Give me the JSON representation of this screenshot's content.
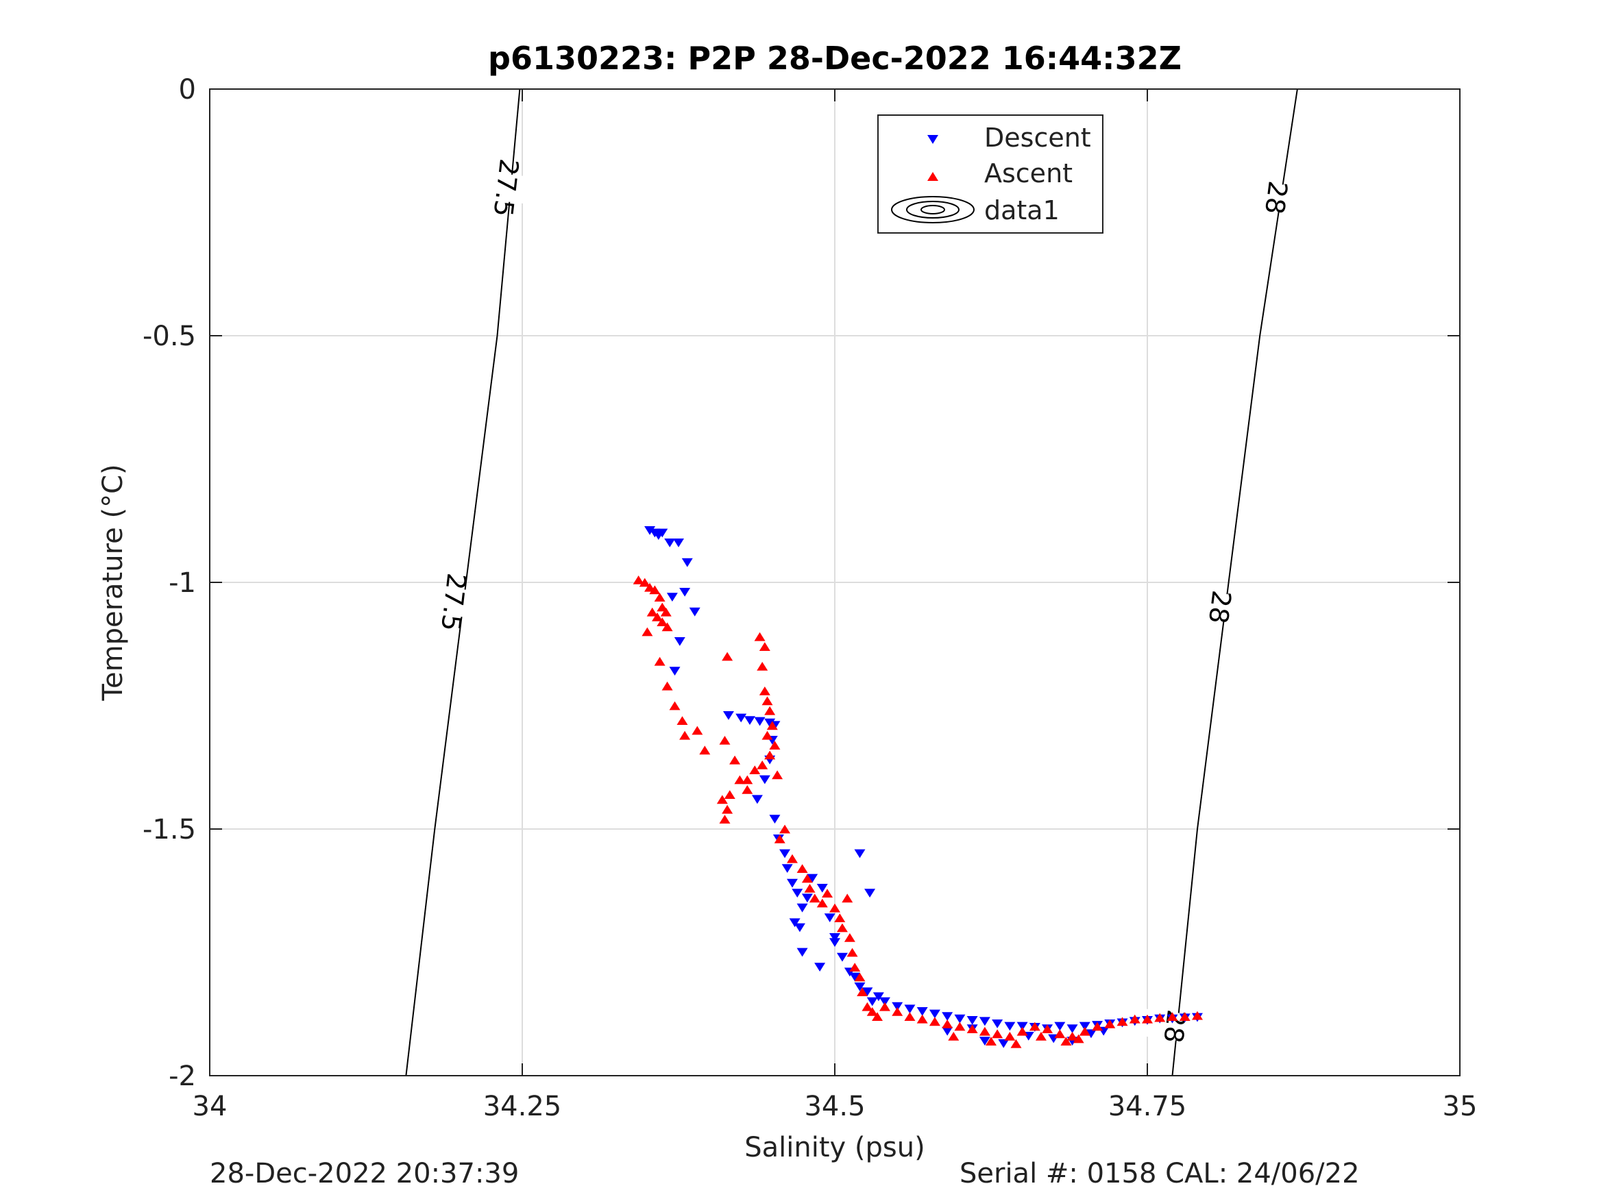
{
  "chart_data": {
    "type": "scatter",
    "title": "p6130223: P2P 28-Dec-2022 16:44:32Z",
    "xlabel": "Salinity (psu)",
    "ylabel": "Temperature (°C)",
    "xlim": [
      34,
      35
    ],
    "ylim": [
      -2,
      0
    ],
    "xticks": [
      34,
      34.25,
      34.5,
      34.75,
      35
    ],
    "xtick_labels": [
      "34",
      "34.25",
      "34.5",
      "34.75",
      "35"
    ],
    "yticks": [
      0,
      -0.5,
      -1,
      -1.5,
      -2
    ],
    "ytick_labels": [
      "0",
      "-0.5",
      "-1",
      "-1.5",
      "-2"
    ],
    "grid": true,
    "legend_position": "top-right",
    "legend": [
      "Descent",
      "Ascent",
      "data1"
    ],
    "colors": {
      "descent": "#0000ff",
      "ascent": "#ff0000",
      "contour": "#000000",
      "grid": "#dddddd"
    },
    "contours": [
      {
        "label": "27.5",
        "points": [
          [
            34.157,
            -2
          ],
          [
            34.18,
            -1.5
          ],
          [
            34.205,
            -1.0
          ],
          [
            34.23,
            -0.5
          ],
          [
            34.248,
            0
          ]
        ],
        "label_positions": [
          [
            34.195,
            -1.04
          ],
          [
            34.237,
            -0.2
          ]
        ]
      },
      {
        "label": "28",
        "points": [
          [
            34.77,
            -2
          ],
          [
            34.79,
            -1.5
          ],
          [
            34.815,
            -1.0
          ],
          [
            34.84,
            -0.5
          ],
          [
            34.87,
            0
          ]
        ],
        "label_positions": [
          [
            34.772,
            -1.9
          ],
          [
            34.808,
            -1.05
          ],
          [
            34.853,
            -0.22
          ]
        ]
      }
    ],
    "series": [
      {
        "name": "Descent",
        "marker": "triangle-down",
        "points": [
          [
            34.352,
            -0.895
          ],
          [
            34.356,
            -0.9
          ],
          [
            34.359,
            -0.905
          ],
          [
            34.362,
            -0.9
          ],
          [
            34.368,
            -0.92
          ],
          [
            34.375,
            -0.92
          ],
          [
            34.382,
            -0.96
          ],
          [
            34.38,
            -1.02
          ],
          [
            34.388,
            -1.06
          ],
          [
            34.37,
            -1.03
          ],
          [
            34.376,
            -1.12
          ],
          [
            34.372,
            -1.18
          ],
          [
            34.415,
            -1.27
          ],
          [
            34.425,
            -1.275
          ],
          [
            34.432,
            -1.28
          ],
          [
            34.44,
            -1.282
          ],
          [
            34.448,
            -1.285
          ],
          [
            34.452,
            -1.29
          ],
          [
            34.45,
            -1.32
          ],
          [
            34.448,
            -1.36
          ],
          [
            34.444,
            -1.4
          ],
          [
            34.438,
            -1.44
          ],
          [
            34.452,
            -1.48
          ],
          [
            34.455,
            -1.52
          ],
          [
            34.46,
            -1.55
          ],
          [
            34.462,
            -1.58
          ],
          [
            34.466,
            -1.61
          ],
          [
            34.47,
            -1.63
          ],
          [
            34.474,
            -1.66
          ],
          [
            34.468,
            -1.69
          ],
          [
            34.472,
            -1.7
          ],
          [
            34.478,
            -1.64
          ],
          [
            34.482,
            -1.6
          ],
          [
            34.49,
            -1.62
          ],
          [
            34.496,
            -1.68
          ],
          [
            34.5,
            -1.72
          ],
          [
            34.52,
            -1.55
          ],
          [
            34.528,
            -1.63
          ],
          [
            34.474,
            -1.75
          ],
          [
            34.488,
            -1.78
          ],
          [
            34.5,
            -1.73
          ],
          [
            34.506,
            -1.76
          ],
          [
            34.512,
            -1.79
          ],
          [
            34.516,
            -1.8
          ],
          [
            34.52,
            -1.82
          ],
          [
            34.526,
            -1.83
          ],
          [
            34.53,
            -1.85
          ],
          [
            34.535,
            -1.84
          ],
          [
            34.54,
            -1.85
          ],
          [
            34.55,
            -1.86
          ],
          [
            34.56,
            -1.865
          ],
          [
            34.57,
            -1.87
          ],
          [
            34.58,
            -1.875
          ],
          [
            34.59,
            -1.88
          ],
          [
            34.6,
            -1.885
          ],
          [
            34.61,
            -1.888
          ],
          [
            34.62,
            -1.89
          ],
          [
            34.63,
            -1.895
          ],
          [
            34.64,
            -1.9
          ],
          [
            34.65,
            -1.9
          ],
          [
            34.66,
            -1.902
          ],
          [
            34.67,
            -1.905
          ],
          [
            34.68,
            -1.9
          ],
          [
            34.69,
            -1.905
          ],
          [
            34.7,
            -1.9
          ],
          [
            34.71,
            -1.898
          ],
          [
            34.72,
            -1.895
          ],
          [
            34.73,
            -1.893
          ],
          [
            34.74,
            -1.89
          ],
          [
            34.75,
            -1.888
          ],
          [
            34.76,
            -1.885
          ],
          [
            34.77,
            -1.885
          ],
          [
            34.78,
            -1.883
          ],
          [
            34.79,
            -1.882
          ],
          [
            34.635,
            -1.935
          ],
          [
            34.655,
            -1.92
          ],
          [
            34.675,
            -1.925
          ],
          [
            34.69,
            -1.93
          ],
          [
            34.705,
            -1.915
          ],
          [
            34.715,
            -1.91
          ],
          [
            34.59,
            -1.91
          ],
          [
            34.61,
            -1.905
          ],
          [
            34.62,
            -1.93
          ]
        ]
      },
      {
        "name": "Ascent",
        "marker": "triangle-up",
        "points": [
          [
            34.343,
            -0.995
          ],
          [
            34.348,
            -1.0
          ],
          [
            34.352,
            -1.01
          ],
          [
            34.356,
            -1.015
          ],
          [
            34.36,
            -1.03
          ],
          [
            34.362,
            -1.05
          ],
          [
            34.365,
            -1.06
          ],
          [
            34.358,
            -1.07
          ],
          [
            34.354,
            -1.06
          ],
          [
            34.362,
            -1.08
          ],
          [
            34.366,
            -1.09
          ],
          [
            34.35,
            -1.1
          ],
          [
            34.36,
            -1.16
          ],
          [
            34.366,
            -1.21
          ],
          [
            34.372,
            -1.25
          ],
          [
            34.378,
            -1.28
          ],
          [
            34.38,
            -1.31
          ],
          [
            34.39,
            -1.3
          ],
          [
            34.396,
            -1.34
          ],
          [
            34.412,
            -1.32
          ],
          [
            34.42,
            -1.36
          ],
          [
            34.43,
            -1.42
          ],
          [
            34.424,
            -1.4
          ],
          [
            34.416,
            -1.43
          ],
          [
            34.41,
            -1.44
          ],
          [
            34.414,
            -1.46
          ],
          [
            34.412,
            -1.48
          ],
          [
            34.43,
            -1.4
          ],
          [
            34.436,
            -1.38
          ],
          [
            34.442,
            -1.37
          ],
          [
            34.414,
            -1.15
          ],
          [
            34.44,
            -1.11
          ],
          [
            34.444,
            -1.13
          ],
          [
            34.442,
            -1.17
          ],
          [
            34.444,
            -1.22
          ],
          [
            34.446,
            -1.24
          ],
          [
            34.448,
            -1.26
          ],
          [
            34.45,
            -1.29
          ],
          [
            34.446,
            -1.31
          ],
          [
            34.452,
            -1.33
          ],
          [
            34.448,
            -1.35
          ],
          [
            34.454,
            -1.39
          ],
          [
            34.456,
            -1.52
          ],
          [
            34.46,
            -1.5
          ],
          [
            34.466,
            -1.56
          ],
          [
            34.474,
            -1.58
          ],
          [
            34.478,
            -1.6
          ],
          [
            34.48,
            -1.62
          ],
          [
            34.484,
            -1.64
          ],
          [
            34.49,
            -1.65
          ],
          [
            34.494,
            -1.63
          ],
          [
            34.5,
            -1.66
          ],
          [
            34.504,
            -1.68
          ],
          [
            34.51,
            -1.64
          ],
          [
            34.506,
            -1.7
          ],
          [
            34.512,
            -1.72
          ],
          [
            34.514,
            -1.75
          ],
          [
            34.516,
            -1.78
          ],
          [
            34.52,
            -1.8
          ],
          [
            34.522,
            -1.83
          ],
          [
            34.526,
            -1.86
          ],
          [
            34.53,
            -1.87
          ],
          [
            34.534,
            -1.88
          ],
          [
            34.54,
            -1.86
          ],
          [
            34.55,
            -1.87
          ],
          [
            34.56,
            -1.88
          ],
          [
            34.57,
            -1.885
          ],
          [
            34.58,
            -1.89
          ],
          [
            34.59,
            -1.895
          ],
          [
            34.6,
            -1.9
          ],
          [
            34.61,
            -1.905
          ],
          [
            34.62,
            -1.91
          ],
          [
            34.63,
            -1.915
          ],
          [
            34.64,
            -1.92
          ],
          [
            34.65,
            -1.91
          ],
          [
            34.66,
            -1.9
          ],
          [
            34.67,
            -1.905
          ],
          [
            34.68,
            -1.915
          ],
          [
            34.69,
            -1.92
          ],
          [
            34.7,
            -1.91
          ],
          [
            34.71,
            -1.9
          ],
          [
            34.72,
            -1.895
          ],
          [
            34.73,
            -1.89
          ],
          [
            34.74,
            -1.885
          ],
          [
            34.75,
            -1.885
          ],
          [
            34.76,
            -1.882
          ],
          [
            34.77,
            -1.88
          ],
          [
            34.78,
            -1.88
          ],
          [
            34.79,
            -1.878
          ],
          [
            34.595,
            -1.92
          ],
          [
            34.625,
            -1.93
          ],
          [
            34.645,
            -1.935
          ],
          [
            34.665,
            -1.92
          ],
          [
            34.685,
            -1.93
          ],
          [
            34.695,
            -1.925
          ]
        ]
      }
    ]
  },
  "footer": {
    "left": "28-Dec-2022 20:37:39",
    "right": "Serial #: 0158  CAL: 24/06/22"
  }
}
